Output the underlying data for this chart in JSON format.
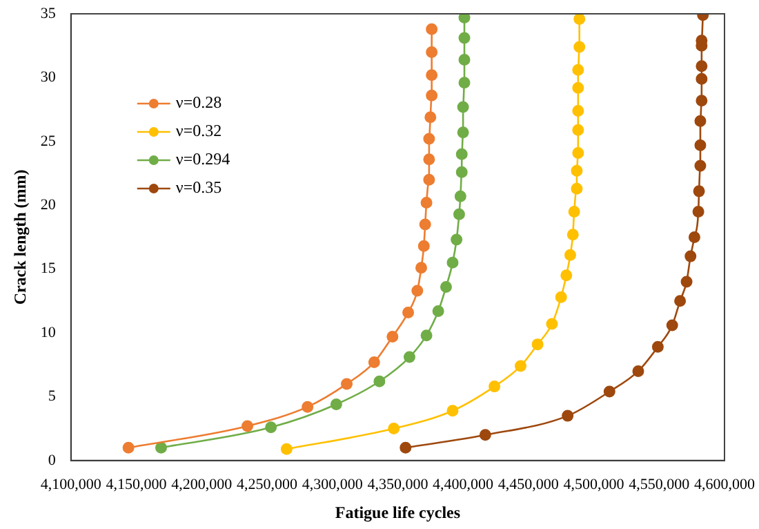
{
  "chart_data": {
    "type": "line",
    "xlabel": "Fatigue life cycles",
    "ylabel": "Crack length (mm)",
    "xlim": [
      4100000,
      4600000
    ],
    "xticks": [
      {
        "value": 4100000,
        "label": "4,100,000"
      },
      {
        "value": 4150000,
        "label": "4,150,000"
      },
      {
        "value": 4200000,
        "label": "4,200,000"
      },
      {
        "value": 4250000,
        "label": "4,250,000"
      },
      {
        "value": 4300000,
        "label": "4,300,000"
      },
      {
        "value": 4350000,
        "label": "4,350,000"
      },
      {
        "value": 4400000,
        "label": "4,400,000"
      },
      {
        "value": 4450000,
        "label": "4,450,000"
      },
      {
        "value": 4500000,
        "label": "4,500,000"
      },
      {
        "value": 4550000,
        "label": "4,550,000"
      },
      {
        "value": 4600000,
        "label": "4,600,000"
      }
    ],
    "ylim": [
      0,
      35
    ],
    "yticks": [
      0,
      5,
      10,
      15,
      20,
      25,
      30,
      35
    ],
    "grid": false,
    "legend": "top left",
    "marker": "circle",
    "line_style": "solid",
    "series": [
      {
        "name": "ν=0.28",
        "color": "#ed7d31",
        "x": [
          4144000,
          4235000,
          4281000,
          4311000,
          4332000,
          4346000,
          4358000,
          4365000,
          4368000,
          4370000,
          4371000,
          4372000,
          4374000,
          4374000,
          4374000,
          4375000,
          4376000,
          4376000,
          4376000,
          4376000
        ],
        "values": [
          1.0,
          2.7,
          4.2,
          6.0,
          7.7,
          9.7,
          11.6,
          13.3,
          15.1,
          16.8,
          18.5,
          20.2,
          22.0,
          23.6,
          25.2,
          26.9,
          28.6,
          30.2,
          32.0,
          33.8
        ]
      },
      {
        "name": "ν=0.32",
        "color": "#ffc000",
        "x": [
          4265000,
          4347000,
          4392000,
          4424000,
          4444000,
          4457000,
          4468000,
          4475000,
          4479000,
          4482000,
          4484000,
          4485000,
          4487000,
          4487000,
          4488000,
          4488000,
          4488000,
          4488000,
          4488000,
          4489000,
          4489000
        ],
        "values": [
          0.9,
          2.5,
          3.9,
          5.8,
          7.4,
          9.1,
          10.7,
          12.8,
          14.5,
          16.1,
          17.7,
          19.5,
          21.3,
          22.7,
          24.1,
          25.9,
          27.4,
          29.2,
          30.6,
          32.4,
          34.6
        ]
      },
      {
        "name": "ν=0.294",
        "color": "#70ad47",
        "x": [
          4169000,
          4253000,
          4303000,
          4336000,
          4359000,
          4372000,
          4381000,
          4387000,
          4392000,
          4395000,
          4397000,
          4398000,
          4399000,
          4399000,
          4400000,
          4400000,
          4401000,
          4401000,
          4401000,
          4401000
        ],
        "values": [
          1.0,
          2.6,
          4.4,
          6.2,
          8.1,
          9.8,
          11.7,
          13.6,
          15.5,
          17.3,
          19.3,
          20.7,
          22.6,
          24.0,
          25.7,
          27.7,
          29.6,
          31.4,
          33.1,
          34.7
        ]
      },
      {
        "name": "ν=0.35",
        "color": "#9e480e",
        "x": [
          4356000,
          4417000,
          4480000,
          4512000,
          4534000,
          4549000,
          4560000,
          4566000,
          4571000,
          4574000,
          4577000,
          4580000,
          4580500,
          4581500,
          4581500,
          4581500,
          4582500,
          4582500,
          4582500,
          4582500,
          4582500,
          4583500
        ],
        "values": [
          1.0,
          2.0,
          3.5,
          5.4,
          7.0,
          8.9,
          10.6,
          12.5,
          14.0,
          16.0,
          17.5,
          19.5,
          21.1,
          23.1,
          24.7,
          26.6,
          28.2,
          29.9,
          30.9,
          32.5,
          32.9,
          34.9
        ]
      }
    ]
  }
}
